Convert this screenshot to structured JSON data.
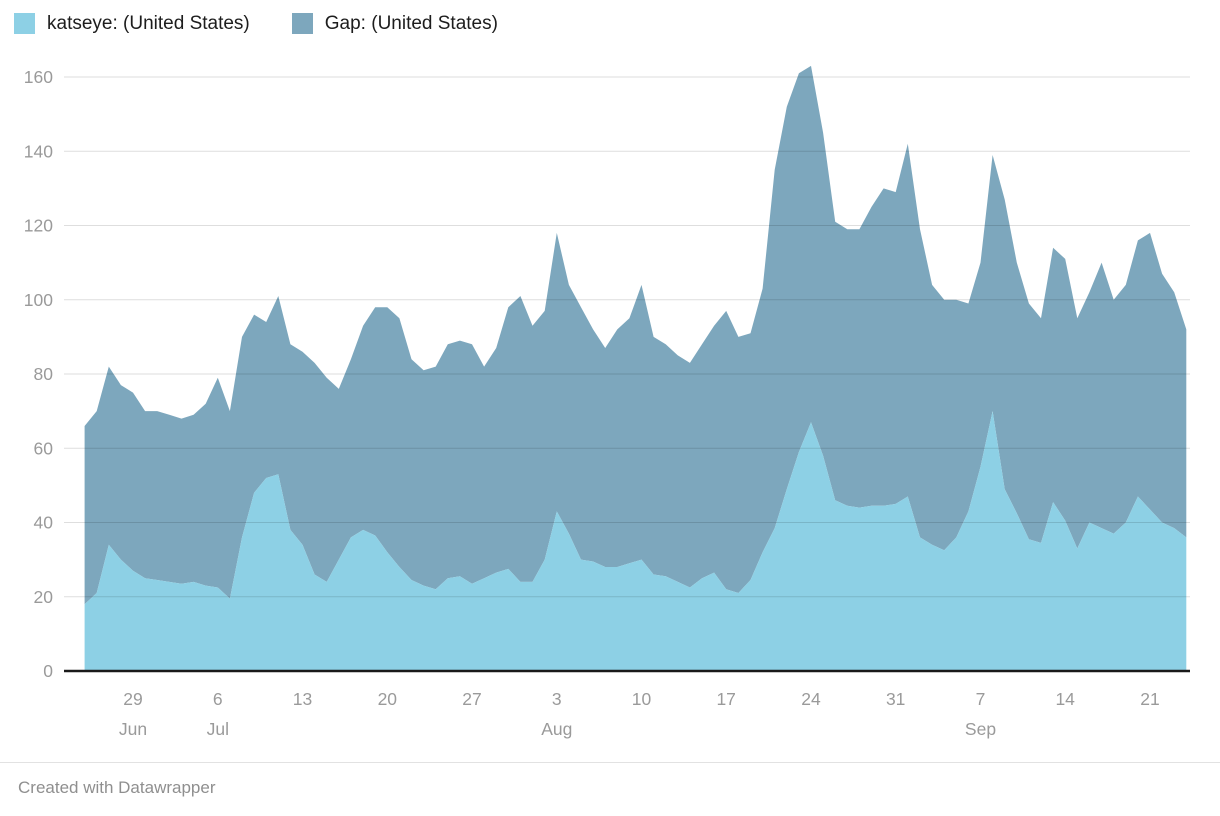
{
  "legend": {
    "items": [
      {
        "label": "katseye: (United States)",
        "color": "#8dd0e5"
      },
      {
        "label": "Gap: (United States)",
        "color": "#7da7bd"
      }
    ]
  },
  "footer": {
    "credit": "Created with Datawrapper"
  },
  "chart_data": {
    "type": "area",
    "stacked": true,
    "x_unit": "day",
    "date_range": "Jun 25 - Sep 24",
    "grid": true,
    "legend_position": "top-left",
    "ylim": [
      0,
      160
    ],
    "y_ticks": [
      0,
      20,
      40,
      60,
      80,
      100,
      120,
      140,
      160
    ],
    "x_ticks": [
      {
        "index": 4,
        "label": "29",
        "month": "Jun"
      },
      {
        "index": 11,
        "label": "6",
        "month": "Jul"
      },
      {
        "index": 18,
        "label": "13",
        "month": ""
      },
      {
        "index": 25,
        "label": "20",
        "month": ""
      },
      {
        "index": 32,
        "label": "27",
        "month": ""
      },
      {
        "index": 39,
        "label": "3",
        "month": "Aug"
      },
      {
        "index": 46,
        "label": "10",
        "month": ""
      },
      {
        "index": 53,
        "label": "17",
        "month": ""
      },
      {
        "index": 60,
        "label": "24",
        "month": ""
      },
      {
        "index": 67,
        "label": "31",
        "month": ""
      },
      {
        "index": 74,
        "label": "7",
        "month": "Sep"
      },
      {
        "index": 81,
        "label": "14",
        "month": ""
      },
      {
        "index": 88,
        "label": "21",
        "month": ""
      }
    ],
    "series": [
      {
        "name": "katseye: (United States)",
        "color": "#8dd0e5",
        "values": [
          18,
          21,
          34,
          30,
          27,
          25,
          24.5,
          24,
          23.5,
          24,
          23,
          22.5,
          19.5,
          36,
          48,
          52,
          53,
          38,
          34,
          26,
          24,
          30,
          36,
          38,
          36.5,
          32,
          28,
          24.5,
          23,
          22,
          25,
          25.5,
          23.5,
          25,
          26.5,
          27.5,
          24,
          24,
          30,
          43,
          37,
          30,
          29.5,
          28,
          28,
          29,
          30,
          26,
          25.5,
          24,
          22.5,
          25,
          26.5,
          22,
          21,
          24.5,
          32,
          38.5,
          49,
          59,
          67,
          58,
          46,
          44.5,
          44,
          44.5,
          44.5,
          45,
          47,
          36,
          34,
          32.5,
          36,
          43,
          55,
          70,
          49,
          42.5,
          35.5,
          34.5,
          45.5,
          40.5,
          33,
          40,
          38.5,
          37,
          40,
          47,
          43.5,
          40,
          38.5,
          36
        ]
      },
      {
        "name": "Gap: (United States)",
        "color": "#7da7bd",
        "values": [
          48,
          49,
          48,
          47,
          48,
          45,
          45.5,
          45,
          44.5,
          45,
          49,
          56.5,
          50.5,
          54,
          48,
          42,
          48,
          50,
          52,
          57,
          55,
          46,
          48,
          55,
          61.5,
          66,
          67,
          59.5,
          58,
          60,
          63,
          63.5,
          64.5,
          57,
          60.5,
          70.5,
          77,
          69,
          67,
          75,
          67,
          68,
          62.5,
          59,
          64,
          66,
          74,
          64,
          62.5,
          61,
          60.5,
          63,
          66.5,
          75,
          69,
          66.5,
          71,
          96.5,
          103,
          102,
          96,
          87,
          75,
          74.5,
          75,
          80.5,
          85.5,
          84,
          95,
          83,
          70,
          67.5,
          64,
          56,
          55,
          69,
          78,
          67.5,
          63.5,
          60.5,
          68.5,
          70.5,
          62,
          62,
          71.5,
          63,
          64,
          69,
          74.5,
          67,
          63.5,
          56
        ]
      }
    ]
  }
}
